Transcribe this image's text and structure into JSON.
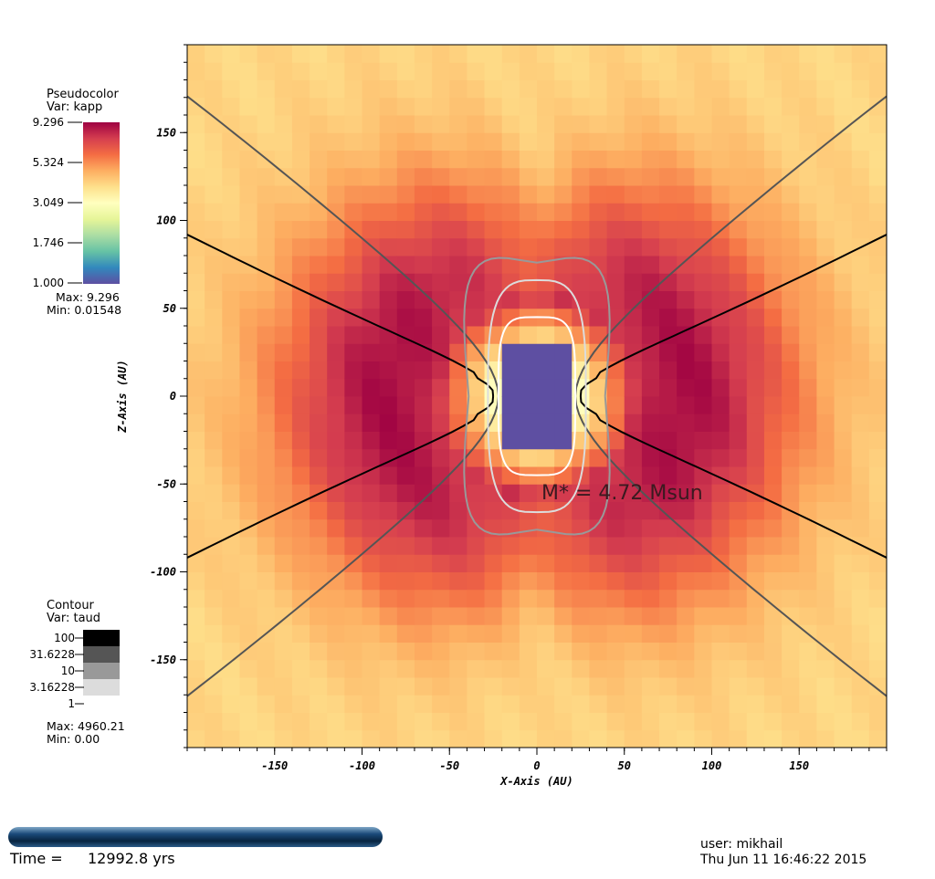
{
  "chart_data": {
    "type": "heatmap",
    "xlabel": "X-Axis (AU)",
    "ylabel": "Z-Axis (AU)",
    "xlim": [
      -200,
      200
    ],
    "ylim": [
      -200,
      200
    ],
    "xticks": [
      "-150",
      "-100",
      "-50",
      "0",
      "50",
      "100",
      "150"
    ],
    "xtick_values": [
      -150,
      -100,
      -50,
      0,
      50,
      100,
      150
    ],
    "yticks": [
      "150",
      "100",
      "50",
      "0",
      "-50",
      "-100",
      "-150"
    ],
    "ytick_values": [
      150,
      100,
      50,
      0,
      -50,
      -100,
      -150
    ],
    "annotation": "M* = 4.72 Msun",
    "annotation_position": [
      30,
      -55
    ],
    "pseudocolor": {
      "title": "Pseudocolor",
      "var": "Var: kapp",
      "ticks": [
        "9.296",
        "5.324",
        "3.049",
        "1.746",
        "1.000"
      ],
      "max": "Max:  9.296",
      "min": "Min:  0.01548",
      "colors": [
        "#9e0142",
        "#d53e4f",
        "#f46d43",
        "#fdae61",
        "#fee08b",
        "#ffffbf",
        "#e6f598",
        "#abdda4",
        "#66c2a5",
        "#3288bd",
        "#5e4fa2"
      ]
    },
    "contour": {
      "title": "Contour",
      "var": "Var: taud",
      "levels": [
        "100",
        "31.6228",
        "10",
        "3.16228",
        "1"
      ],
      "level_colors": [
        "#000000",
        "#555555",
        "#999999",
        "#dcdcdc",
        "#ffffff"
      ],
      "max": "Max:  4960.21",
      "min": "Min:  0.00"
    }
  },
  "footer": {
    "time_label": "Time =",
    "time_value": "12992.8 yrs",
    "user": "user: mikhail",
    "date": "Thu Jun 11 16:46:22 2015"
  }
}
